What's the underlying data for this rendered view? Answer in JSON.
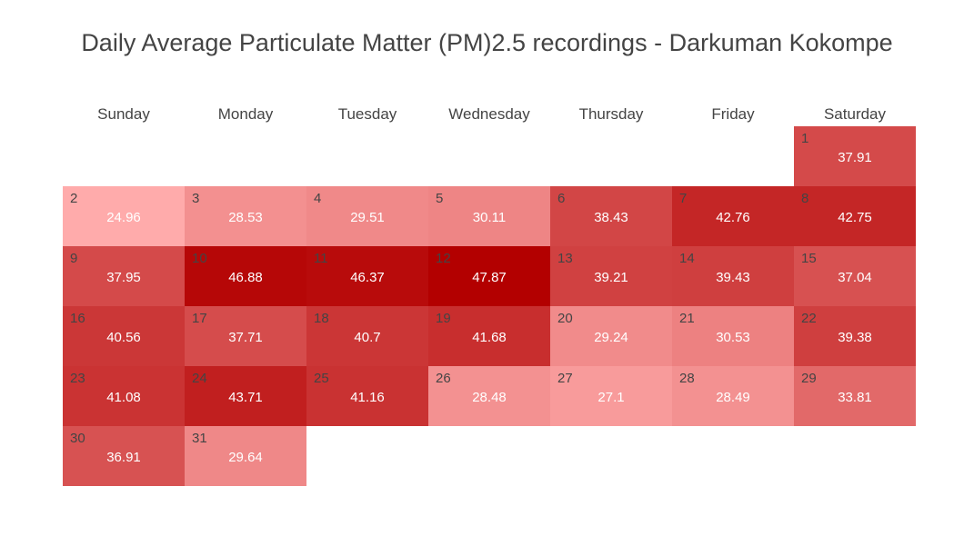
{
  "chart_data": {
    "type": "heatmap",
    "title": "Daily Average Particulate Matter (PM)2.5 recordings - Darkuman Kokompe",
    "weekdays": [
      "Sunday",
      "Monday",
      "Tuesday",
      "Wednesday",
      "Thursday",
      "Friday",
      "Saturday"
    ],
    "first_weekday_index": 6,
    "days": [
      1,
      2,
      3,
      4,
      5,
      6,
      7,
      8,
      9,
      10,
      11,
      12,
      13,
      14,
      15,
      16,
      17,
      18,
      19,
      20,
      21,
      22,
      23,
      24,
      25,
      26,
      27,
      28,
      29,
      30,
      31
    ],
    "day_labels": [
      "1",
      "2",
      "3",
      "4",
      "5",
      "6",
      "7",
      "8",
      "9",
      "10",
      "11",
      "12",
      "13",
      "14",
      "15",
      "16",
      "17",
      "18",
      "19",
      "20",
      "21",
      "22",
      "23",
      "24",
      "25",
      "26",
      "27",
      "28",
      "29",
      "30",
      "31"
    ],
    "value_labels": [
      "37.91",
      "24.96",
      "28.53",
      "29.51",
      "30.11",
      "38.43",
      "42.76",
      "42.75",
      "37.95",
      "46.88",
      "46.37",
      "47.87",
      "39.21",
      "39.43",
      "37.04",
      "40.56",
      "37.71",
      "40.7",
      "41.68",
      "29.24",
      "30.53",
      "39.38",
      "41.08",
      "43.71",
      "41.16",
      "28.48",
      "27.1",
      "28.49",
      "33.81",
      "36.91",
      "29.64"
    ],
    "values": [
      37.91,
      24.96,
      28.53,
      29.51,
      30.11,
      38.43,
      42.76,
      42.75,
      37.95,
      46.88,
      46.37,
      47.87,
      39.21,
      39.43,
      37.04,
      40.56,
      37.71,
      40.7,
      41.68,
      29.24,
      30.53,
      39.38,
      41.08,
      43.71,
      41.16,
      28.48,
      27.1,
      28.49,
      33.81,
      36.91,
      29.64
    ],
    "color_scale": {
      "low": "#ffabab",
      "high": "#b30000"
    }
  }
}
